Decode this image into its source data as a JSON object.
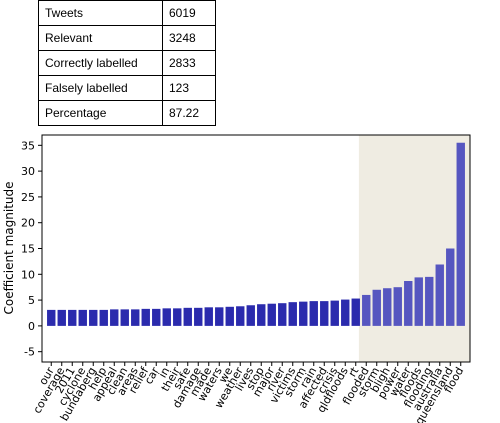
{
  "table": {
    "rows": [
      [
        "Tweets",
        "6019"
      ],
      [
        "Relevant",
        "3248"
      ],
      [
        "Correctly labelled",
        "2833"
      ],
      [
        "Falsely labelled",
        "123"
      ],
      [
        "Percentage",
        "87.22"
      ]
    ]
  },
  "chart_data": {
    "type": "bar",
    "ylabel": "Coefficient magnitude",
    "categories": [
      "our",
      "coverage",
      "2011",
      "cyclone",
      "bundaberg",
      "help",
      "appeal",
      "clean",
      "areas",
      "relief",
      "car",
      "in",
      "their",
      "safe",
      "damage",
      "made",
      "waters",
      "we",
      "weather",
      "lives",
      "stop",
      "major",
      "river",
      "victims",
      "storm",
      "rain",
      "affected",
      "crisis",
      "qldfloods",
      "rt",
      "flooded",
      "storm",
      "bligh",
      "power",
      "water",
      "floods",
      "flooding",
      "australia",
      "queensland",
      "flood"
    ],
    "values": [
      3.1,
      3.1,
      3.1,
      3.1,
      3.1,
      3.1,
      3.2,
      3.2,
      3.2,
      3.3,
      3.3,
      3.4,
      3.4,
      3.5,
      3.5,
      3.6,
      3.6,
      3.7,
      3.8,
      4.0,
      4.2,
      4.3,
      4.4,
      4.6,
      4.7,
      4.8,
      4.8,
      4.9,
      5.1,
      5.3,
      6.0,
      7.0,
      7.3,
      7.5,
      8.7,
      9.4,
      9.5,
      11.9,
      15.0,
      35.5
    ],
    "color": "#2b2bad",
    "highlight": {
      "start": 30,
      "color": "#5656c0",
      "background": "#efece2"
    },
    "ylim": [
      -7,
      37
    ],
    "yticks": [
      -5,
      0,
      5,
      10,
      15,
      20,
      25,
      30,
      35
    ]
  }
}
